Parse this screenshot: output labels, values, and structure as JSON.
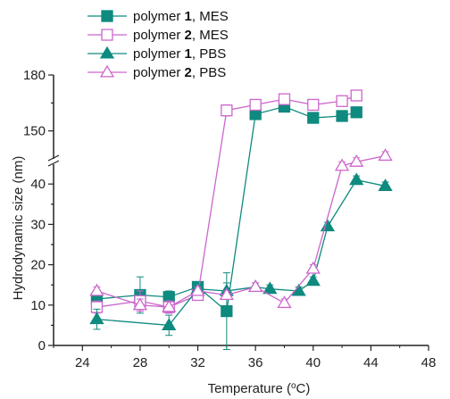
{
  "chart_data": {
    "type": "line",
    "title": "",
    "xlabel": "Temperature (",
    "xlabel_sup": "o",
    "xlabel_unit": "C)",
    "ylabel": "Hydrodynamic size (nm)",
    "xlim": [
      22,
      48
    ],
    "x_ticks": [
      24,
      28,
      32,
      36,
      40,
      44,
      48
    ],
    "ylim_lower": [
      0,
      48
    ],
    "y_ticks_lower": [
      0,
      10,
      20,
      30,
      40
    ],
    "ylim_upper": [
      135,
      180
    ],
    "y_ticks_upper": [
      150,
      180
    ],
    "y_axis_break": true,
    "grid": false,
    "legend_position": "top-left",
    "series": [
      {
        "name": "polymer 1, MES",
        "name_main": "polymer ",
        "name_bold": "1",
        "name_rest": ", MES",
        "color": "#0e8a7f",
        "marker": "square-filled",
        "x": [
          25,
          28,
          30,
          32,
          34,
          36,
          38,
          40,
          42,
          43
        ],
        "y": [
          11.5,
          12.5,
          12.0,
          14.5,
          8.5,
          159,
          163,
          157,
          158,
          160
        ],
        "err": [
          2,
          4.5,
          1.5,
          1,
          9.5,
          1.5,
          1.5,
          1.5,
          1,
          1
        ]
      },
      {
        "name": "polymer 2, MES",
        "name_main": "polymer ",
        "name_bold": "2",
        "name_rest": ", MES",
        "color": "#cc66cc",
        "marker": "square-open",
        "x": [
          25,
          28,
          30,
          32,
          34,
          36,
          38,
          40,
          42,
          43
        ],
        "y": [
          9.5,
          11.0,
          9.5,
          12.5,
          161,
          164,
          167,
          164,
          166,
          169
        ],
        "err": [
          1.5,
          2.5,
          1.5,
          1,
          3,
          1.5,
          1.5,
          1.5,
          1,
          1
        ]
      },
      {
        "name": "polymer 1, PBS",
        "name_main": "polymer ",
        "name_bold": "1",
        "name_rest": ", PBS",
        "color": "#0e8a7f",
        "marker": "triangle-filled",
        "x": [
          25,
          30,
          32,
          34,
          36,
          37,
          39,
          40,
          41,
          43,
          45
        ],
        "y": [
          6.5,
          5.0,
          14.0,
          13.5,
          14.5,
          14.0,
          13.5,
          16.0,
          29.5,
          41.0,
          39.5
        ],
        "err": [
          2.5,
          2.5,
          1,
          2,
          1,
          1,
          1,
          1,
          1,
          1,
          1
        ]
      },
      {
        "name": "polymer 2, PBS",
        "name_main": "polymer ",
        "name_bold": "2",
        "name_rest": ", PBS",
        "color": "#cc66cc",
        "marker": "triangle-open",
        "x": [
          25,
          28,
          30,
          32,
          34,
          36,
          38,
          40,
          42,
          43,
          45
        ],
        "y": [
          13.5,
          10.0,
          9.5,
          13.5,
          12.5,
          14.5,
          10.5,
          19.0,
          44.5,
          45.5,
          47.0
        ],
        "err": [
          1,
          1.5,
          1.5,
          1,
          1,
          1,
          1,
          1,
          1,
          1,
          1
        ]
      }
    ]
  }
}
